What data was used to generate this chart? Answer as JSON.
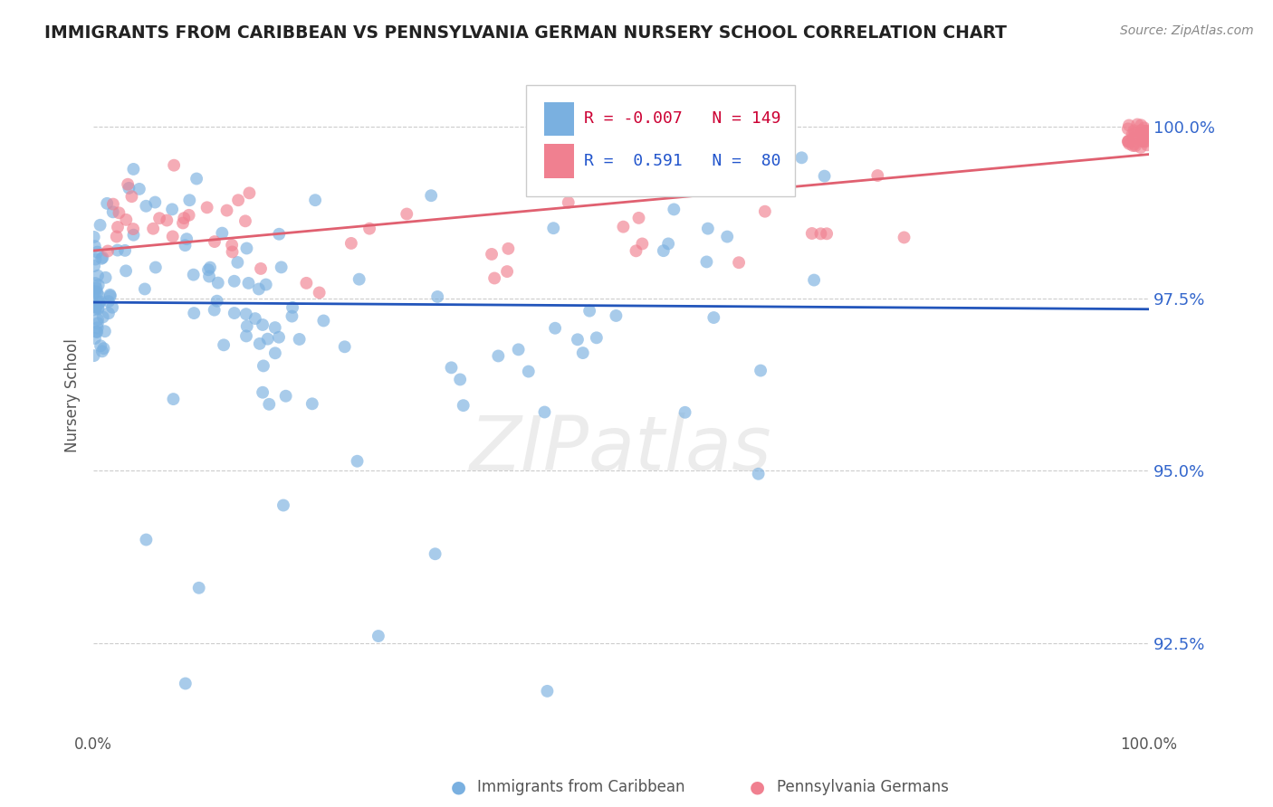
{
  "title": "IMMIGRANTS FROM CARIBBEAN VS PENNSYLVANIA GERMAN NURSERY SCHOOL CORRELATION CHART",
  "source_text": "Source: ZipAtlas.com",
  "ylabel": "Nursery School",
  "y_ticks": [
    92.5,
    95.0,
    97.5,
    100.0
  ],
  "y_tick_labels": [
    "92.5%",
    "95.0%",
    "97.5%",
    "100.0%"
  ],
  "xlim": [
    0.0,
    100.0
  ],
  "ylim": [
    91.2,
    101.0
  ],
  "legend_entries": [
    {
      "label": "Immigrants from Caribbean",
      "color": "#aac4e8"
    },
    {
      "label": "Pennsylvania Germans",
      "color": "#f4a0b0"
    }
  ],
  "R_blue": -0.007,
  "N_blue": 149,
  "R_pink": 0.591,
  "N_pink": 80,
  "blue_color": "#7ab0e0",
  "pink_color": "#f08090",
  "blue_line_color": "#2255bb",
  "pink_line_color": "#e06070",
  "watermark": "ZIPatlas",
  "blue_trend_y0": 97.45,
  "blue_trend_y1": 97.35,
  "pink_trend_y0": 98.2,
  "pink_trend_y1": 99.6
}
